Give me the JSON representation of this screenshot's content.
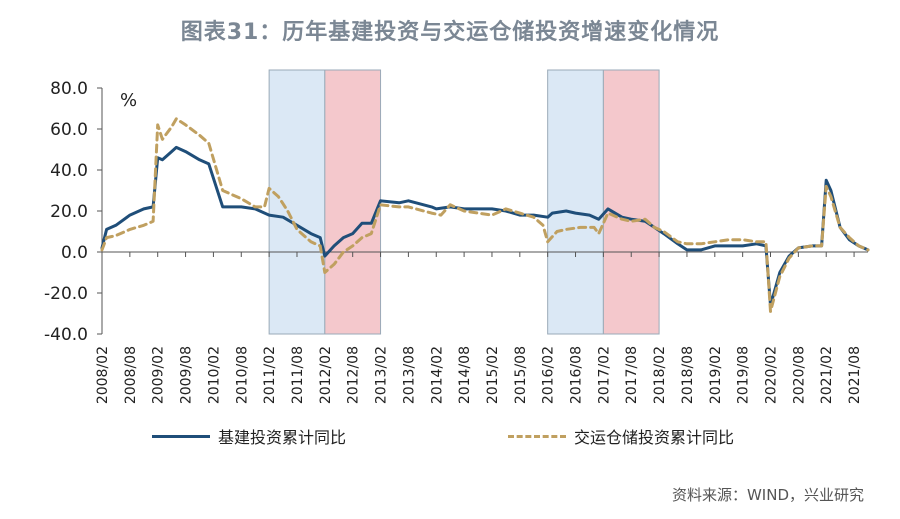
{
  "header": {
    "title": "图表31：历年基建投资与交运仓储投资增速变化情况"
  },
  "source": "资料来源：WIND，兴业研究",
  "chart_data": {
    "type": "line",
    "unit_label": "%",
    "ylim": [
      -40,
      80
    ],
    "yticks": [
      "80.0",
      "60.0",
      "40.0",
      "20.0",
      "0.0",
      "-20.0",
      "-40.0"
    ],
    "ytick_values": [
      80,
      60,
      40,
      20,
      0,
      -20,
      -40
    ],
    "x_start": "2008/02",
    "x_end": "2021/11",
    "xticks": [
      "2008/02",
      "2008/08",
      "2009/02",
      "2009/08",
      "2010/02",
      "2010/08",
      "2011/02",
      "2011/08",
      "2012/02",
      "2012/08",
      "2013/02",
      "2013/08",
      "2014/02",
      "2014/08",
      "2015/02",
      "2015/08",
      "2016/02",
      "2016/08",
      "2017/02",
      "2017/08",
      "2018/02",
      "2018/08",
      "2019/02",
      "2019/08",
      "2020/02",
      "2020/08",
      "2021/02",
      "2021/08"
    ],
    "shaded_regions": [
      {
        "from": "2011/02",
        "to": "2012/02",
        "color": "#dbe8f5"
      },
      {
        "from": "2012/02",
        "to": "2013/02",
        "color": "#f4c8cc"
      },
      {
        "from": "2016/02",
        "to": "2017/02",
        "color": "#dbe8f5"
      },
      {
        "from": "2017/02",
        "to": "2018/02",
        "color": "#f4c8cc"
      }
    ],
    "series": [
      {
        "name": "基建投资累计同比",
        "color": "#1f4e79",
        "style": "solid",
        "points": [
          [
            "2008/02",
            2
          ],
          [
            "2008/03",
            11
          ],
          [
            "2008/05",
            13
          ],
          [
            "2008/08",
            18
          ],
          [
            "2008/11",
            21
          ],
          [
            "2009/01",
            22
          ],
          [
            "2009/02",
            46
          ],
          [
            "2009/03",
            45
          ],
          [
            "2009/05",
            49
          ],
          [
            "2009/06",
            51
          ],
          [
            "2009/08",
            49
          ],
          [
            "2009/11",
            45
          ],
          [
            "2010/01",
            43
          ],
          [
            "2010/04",
            22
          ],
          [
            "2010/08",
            22
          ],
          [
            "2010/11",
            21
          ],
          [
            "2011/02",
            18
          ],
          [
            "2011/05",
            17
          ],
          [
            "2011/08",
            13
          ],
          [
            "2011/11",
            9
          ],
          [
            "2012/01",
            7
          ],
          [
            "2012/02",
            -2
          ],
          [
            "2012/04",
            3
          ],
          [
            "2012/06",
            7
          ],
          [
            "2012/08",
            9
          ],
          [
            "2012/10",
            14
          ],
          [
            "2012/12",
            14
          ],
          [
            "2013/02",
            25
          ],
          [
            "2013/06",
            24
          ],
          [
            "2013/08",
            25
          ],
          [
            "2014/01",
            22
          ],
          [
            "2014/02",
            21
          ],
          [
            "2014/05",
            22
          ],
          [
            "2014/08",
            21
          ],
          [
            "2014/11",
            21
          ],
          [
            "2015/02",
            21
          ],
          [
            "2015/05",
            20
          ],
          [
            "2015/08",
            18
          ],
          [
            "2015/11",
            18
          ],
          [
            "2016/02",
            17
          ],
          [
            "2016/03",
            19
          ],
          [
            "2016/06",
            20
          ],
          [
            "2016/08",
            19
          ],
          [
            "2016/11",
            18
          ],
          [
            "2017/01",
            16
          ],
          [
            "2017/03",
            21
          ],
          [
            "2017/06",
            17
          ],
          [
            "2017/08",
            16
          ],
          [
            "2017/11",
            15
          ],
          [
            "2018/01",
            12
          ],
          [
            "2018/03",
            9
          ],
          [
            "2018/06",
            4
          ],
          [
            "2018/08",
            1
          ],
          [
            "2018/11",
            1
          ],
          [
            "2019/02",
            3
          ],
          [
            "2019/05",
            3
          ],
          [
            "2019/08",
            3
          ],
          [
            "2019/11",
            4
          ],
          [
            "2020/01",
            3
          ],
          [
            "2020/02",
            -26
          ],
          [
            "2020/04",
            -10
          ],
          [
            "2020/06",
            -2
          ],
          [
            "2020/08",
            2
          ],
          [
            "2020/11",
            3
          ],
          [
            "2021/01",
            3
          ],
          [
            "2021/02",
            35
          ],
          [
            "2021/03",
            30
          ],
          [
            "2021/05",
            12
          ],
          [
            "2021/07",
            6
          ],
          [
            "2021/09",
            3
          ],
          [
            "2021/11",
            1
          ]
        ]
      },
      {
        "name": "交运仓储投资累计同比",
        "color": "#c0a060",
        "style": "dashed",
        "points": [
          [
            "2008/02",
            1
          ],
          [
            "2008/03",
            7
          ],
          [
            "2008/05",
            8
          ],
          [
            "2008/08",
            11
          ],
          [
            "2008/11",
            13
          ],
          [
            "2009/01",
            15
          ],
          [
            "2009/02",
            62
          ],
          [
            "2009/03",
            55
          ],
          [
            "2009/05",
            61
          ],
          [
            "2009/06",
            65
          ],
          [
            "2009/08",
            62
          ],
          [
            "2009/11",
            57
          ],
          [
            "2010/01",
            53
          ],
          [
            "2010/04",
            30
          ],
          [
            "2010/08",
            26
          ],
          [
            "2010/11",
            22
          ],
          [
            "2011/01",
            22
          ],
          [
            "2011/02",
            31
          ],
          [
            "2011/04",
            27
          ],
          [
            "2011/06",
            20
          ],
          [
            "2011/08",
            11
          ],
          [
            "2011/11",
            5
          ],
          [
            "2012/01",
            3
          ],
          [
            "2012/02",
            -10
          ],
          [
            "2012/04",
            -6
          ],
          [
            "2012/06",
            0
          ],
          [
            "2012/08",
            3
          ],
          [
            "2012/10",
            7
          ],
          [
            "2012/12",
            9
          ],
          [
            "2013/02",
            23
          ],
          [
            "2013/06",
            22
          ],
          [
            "2013/08",
            22
          ],
          [
            "2014/01",
            19
          ],
          [
            "2014/03",
            18
          ],
          [
            "2014/05",
            23
          ],
          [
            "2014/08",
            20
          ],
          [
            "2014/11",
            19
          ],
          [
            "2015/02",
            18
          ],
          [
            "2015/05",
            21
          ],
          [
            "2015/08",
            19
          ],
          [
            "2015/11",
            17
          ],
          [
            "2016/01",
            13
          ],
          [
            "2016/02",
            5
          ],
          [
            "2016/04",
            10
          ],
          [
            "2016/06",
            11
          ],
          [
            "2016/09",
            12
          ],
          [
            "2016/12",
            12
          ],
          [
            "2017/01",
            9
          ],
          [
            "2017/03",
            19
          ],
          [
            "2017/06",
            16
          ],
          [
            "2017/08",
            15
          ],
          [
            "2017/11",
            16
          ],
          [
            "2018/01",
            12
          ],
          [
            "2018/03",
            10
          ],
          [
            "2018/06",
            5
          ],
          [
            "2018/08",
            4
          ],
          [
            "2018/11",
            4
          ],
          [
            "2019/02",
            5
          ],
          [
            "2019/05",
            6
          ],
          [
            "2019/08",
            6
          ],
          [
            "2019/11",
            5
          ],
          [
            "2020/01",
            5
          ],
          [
            "2020/02",
            -29
          ],
          [
            "2020/04",
            -12
          ],
          [
            "2020/06",
            -3
          ],
          [
            "2020/08",
            2
          ],
          [
            "2020/11",
            3
          ],
          [
            "2021/01",
            3
          ],
          [
            "2021/02",
            32
          ],
          [
            "2021/03",
            27
          ],
          [
            "2021/05",
            12
          ],
          [
            "2021/07",
            7
          ],
          [
            "2021/09",
            3
          ],
          [
            "2021/11",
            1
          ]
        ]
      }
    ]
  }
}
